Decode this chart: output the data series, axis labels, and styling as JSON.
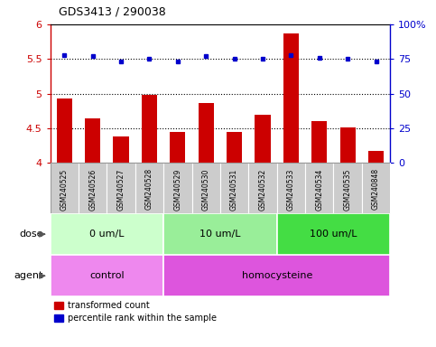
{
  "title": "GDS3413 / 290038",
  "samples": [
    "GSM240525",
    "GSM240526",
    "GSM240527",
    "GSM240528",
    "GSM240529",
    "GSM240530",
    "GSM240531",
    "GSM240532",
    "GSM240533",
    "GSM240534",
    "GSM240535",
    "GSM240848"
  ],
  "bar_values": [
    4.93,
    4.65,
    4.38,
    4.98,
    4.45,
    4.86,
    4.45,
    4.7,
    5.87,
    4.61,
    4.51,
    4.18
  ],
  "dot_values": [
    78,
    77,
    73,
    75,
    73,
    77,
    75,
    75,
    78,
    76,
    75,
    73
  ],
  "bar_color": "#cc0000",
  "dot_color": "#0000cc",
  "ylim_left": [
    4.0,
    6.0
  ],
  "ylim_right": [
    0,
    100
  ],
  "yticks_left": [
    4.0,
    4.5,
    5.0,
    5.5,
    6.0
  ],
  "ytick_labels_left": [
    "4",
    "4.5",
    "5",
    "5.5",
    "6"
  ],
  "yticks_right": [
    0,
    25,
    50,
    75,
    100
  ],
  "ytick_labels_right": [
    "0",
    "25",
    "50",
    "75",
    "100%"
  ],
  "hlines": [
    4.5,
    5.0,
    5.5
  ],
  "dose_groups": [
    {
      "label": "0 um/L",
      "start": 0,
      "end": 4,
      "color": "#ccffcc"
    },
    {
      "label": "10 um/L",
      "start": 4,
      "end": 8,
      "color": "#99ee99"
    },
    {
      "label": "100 um/L",
      "start": 8,
      "end": 12,
      "color": "#44dd44"
    }
  ],
  "agent_groups": [
    {
      "label": "control",
      "start": 0,
      "end": 4,
      "color": "#ee88ee"
    },
    {
      "label": "homocysteine",
      "start": 4,
      "end": 12,
      "color": "#dd55dd"
    }
  ],
  "legend_bar_label": "transformed count",
  "legend_dot_label": "percentile rank within the sample",
  "dose_label": "dose",
  "agent_label": "agent",
  "label_box_color": "#cccccc",
  "label_box_border": "#999999"
}
